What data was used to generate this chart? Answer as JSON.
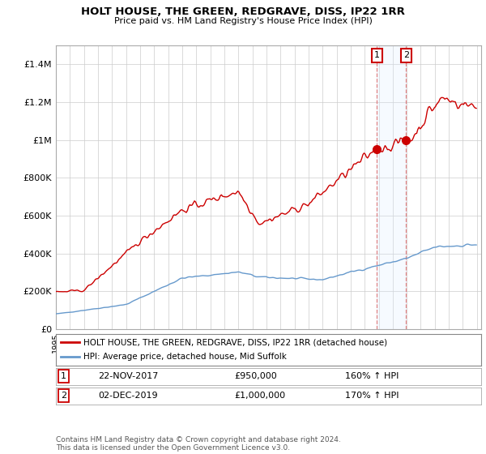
{
  "title": "HOLT HOUSE, THE GREEN, REDGRAVE, DISS, IP22 1RR",
  "subtitle": "Price paid vs. HM Land Registry's House Price Index (HPI)",
  "red_label": "HOLT HOUSE, THE GREEN, REDGRAVE, DISS, IP22 1RR (detached house)",
  "blue_label": "HPI: Average price, detached house, Mid Suffolk",
  "annotation1": {
    "num": "1",
    "date": "22-NOV-2017",
    "price": "£950,000",
    "pct": "160% ↑ HPI"
  },
  "annotation2": {
    "num": "2",
    "date": "02-DEC-2019",
    "price": "£1,000,000",
    "pct": "170% ↑ HPI"
  },
  "footer": "Contains HM Land Registry data © Crown copyright and database right 2024.\nThis data is licensed under the Open Government Licence v3.0.",
  "ylim": [
    0,
    1500000
  ],
  "yticks": [
    0,
    200000,
    400000,
    600000,
    800000,
    1000000,
    1200000,
    1400000
  ],
  "ytick_labels": [
    "£0",
    "£200K",
    "£400K",
    "£600K",
    "£800K",
    "£1M",
    "£1.2M",
    "£1.4M"
  ],
  "red_color": "#cc0000",
  "blue_color": "#6699cc",
  "bg_color": "#ffffff",
  "grid_color": "#cccccc",
  "annotation_box_color": "#cc0000",
  "shade_color": "#ddeeff",
  "sale1_year": 2017.88,
  "sale2_year": 2019.92,
  "sale1_price": 950000,
  "sale2_price": 1000000
}
